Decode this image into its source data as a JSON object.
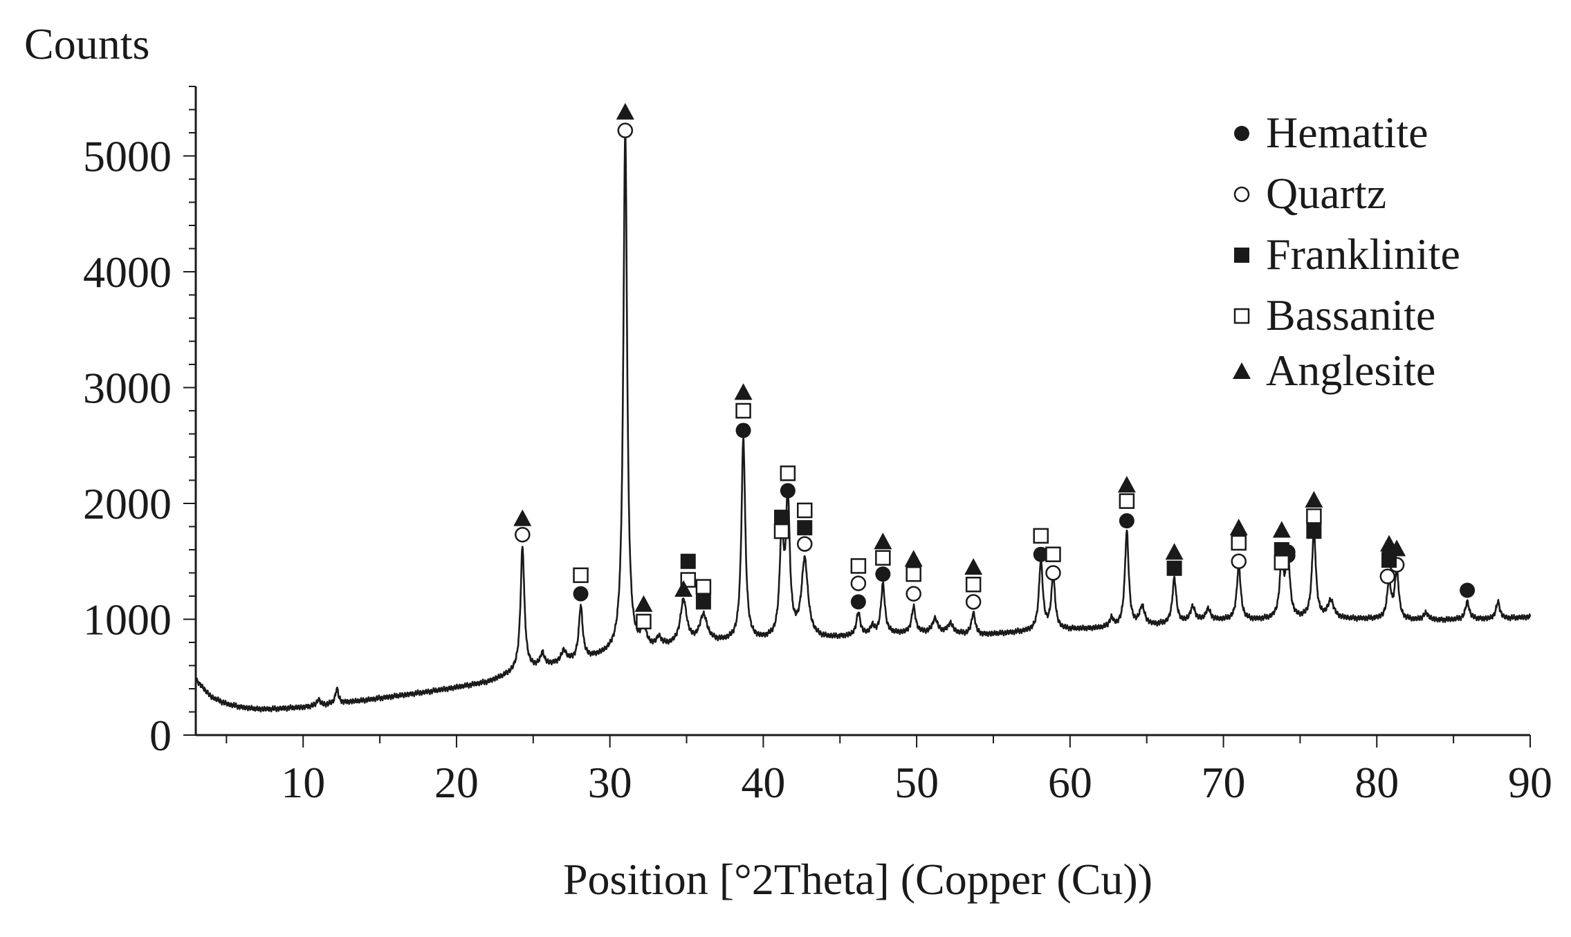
{
  "chart_data": {
    "type": "line",
    "title": "",
    "xlabel": "Position [°2Theta] (Copper (Cu))",
    "ylabel": "Counts",
    "xlim": [
      3,
      90
    ],
    "ylim": [
      0,
      5600
    ],
    "x_ticks": [
      10,
      20,
      30,
      40,
      50,
      60,
      70,
      80,
      90
    ],
    "y_ticks": [
      0,
      1000,
      2000,
      3000,
      4000,
      5000
    ],
    "grid": false,
    "legend_position": "top-right",
    "line_color": "#1a1a1a",
    "baseline": [
      [
        3,
        480
      ],
      [
        4,
        330
      ],
      [
        5,
        270
      ],
      [
        6,
        240
      ],
      [
        7,
        225
      ],
      [
        8,
        225
      ],
      [
        10,
        240
      ],
      [
        12,
        270
      ],
      [
        14,
        300
      ],
      [
        16,
        335
      ],
      [
        18,
        370
      ],
      [
        20,
        410
      ],
      [
        22,
        455
      ],
      [
        23,
        500
      ],
      [
        24,
        550
      ],
      [
        26,
        600
      ],
      [
        28,
        640
      ],
      [
        30,
        690
      ],
      [
        32,
        720
      ],
      [
        34,
        760
      ],
      [
        36,
        790
      ],
      [
        38,
        800
      ],
      [
        40,
        810
      ],
      [
        42,
        830
      ],
      [
        44,
        830
      ],
      [
        46,
        850
      ],
      [
        48,
        870
      ],
      [
        50,
        880
      ],
      [
        52,
        880
      ],
      [
        54,
        860
      ],
      [
        56,
        880
      ],
      [
        58,
        900
      ],
      [
        60,
        910
      ],
      [
        62,
        920
      ],
      [
        64,
        930
      ],
      [
        66,
        950
      ],
      [
        68,
        970
      ],
      [
        70,
        990
      ],
      [
        72,
        990
      ],
      [
        74,
        1000
      ],
      [
        76,
        1000
      ],
      [
        78,
        1000
      ],
      [
        80,
        1000
      ],
      [
        82,
        990
      ],
      [
        84,
        990
      ],
      [
        86,
        1000
      ],
      [
        88,
        1000
      ],
      [
        90,
        1020
      ]
    ],
    "peaks": [
      {
        "x": 11,
        "y": 310,
        "w": 0.12
      },
      {
        "x": 12.2,
        "y": 400,
        "w": 0.12
      },
      {
        "x": 24.3,
        "y": 1620,
        "w": 0.15
      },
      {
        "x": 25.6,
        "y": 700,
        "w": 0.15
      },
      {
        "x": 27,
        "y": 720,
        "w": 0.2
      },
      {
        "x": 28.1,
        "y": 1100,
        "w": 0.15
      },
      {
        "x": 31,
        "y": 5200,
        "w": 0.15
      },
      {
        "x": 32.2,
        "y": 900,
        "w": 0.2
      },
      {
        "x": 33.2,
        "y": 820,
        "w": 0.2
      },
      {
        "x": 34.8,
        "y": 1150,
        "w": 0.25
      },
      {
        "x": 36.1,
        "y": 1020,
        "w": 0.3
      },
      {
        "x": 38.7,
        "y": 2550,
        "w": 0.15
      },
      {
        "x": 41.2,
        "y": 1700,
        "w": 0.15
      },
      {
        "x": 41.6,
        "y": 2000,
        "w": 0.15
      },
      {
        "x": 42.7,
        "y": 1500,
        "w": 0.25
      },
      {
        "x": 46.2,
        "y": 1050,
        "w": 0.15
      },
      {
        "x": 47.1,
        "y": 930,
        "w": 0.15
      },
      {
        "x": 47.8,
        "y": 1300,
        "w": 0.15
      },
      {
        "x": 49.8,
        "y": 1100,
        "w": 0.15
      },
      {
        "x": 51.2,
        "y": 1000,
        "w": 0.2
      },
      {
        "x": 52.2,
        "y": 960,
        "w": 0.2
      },
      {
        "x": 53.7,
        "y": 1050,
        "w": 0.15
      },
      {
        "x": 58.1,
        "y": 1500,
        "w": 0.15
      },
      {
        "x": 58.9,
        "y": 1360,
        "w": 0.15
      },
      {
        "x": 62.7,
        "y": 1000,
        "w": 0.15
      },
      {
        "x": 63.7,
        "y": 1750,
        "w": 0.15
      },
      {
        "x": 64.7,
        "y": 1100,
        "w": 0.2
      },
      {
        "x": 66.8,
        "y": 1350,
        "w": 0.15
      },
      {
        "x": 68,
        "y": 1100,
        "w": 0.2
      },
      {
        "x": 69,
        "y": 1080,
        "w": 0.2
      },
      {
        "x": 71,
        "y": 1460,
        "w": 0.15
      },
      {
        "x": 73.8,
        "y": 1500,
        "w": 0.15
      },
      {
        "x": 74.2,
        "y": 1560,
        "w": 0.15
      },
      {
        "x": 75.9,
        "y": 1760,
        "w": 0.15
      },
      {
        "x": 77,
        "y": 1150,
        "w": 0.25
      },
      {
        "x": 80.8,
        "y": 1320,
        "w": 0.15
      },
      {
        "x": 81.3,
        "y": 1420,
        "w": 0.15
      },
      {
        "x": 83.2,
        "y": 1050,
        "w": 0.2
      },
      {
        "x": 85.9,
        "y": 1150,
        "w": 0.15
      },
      {
        "x": 87.9,
        "y": 1150,
        "w": 0.15
      }
    ],
    "series": [
      {
        "name": "Hematite",
        "marker": "filled-circle",
        "points": [
          [
            28.1,
            1220
          ],
          [
            38.7,
            2630
          ],
          [
            41.6,
            2110
          ],
          [
            46.2,
            1150
          ],
          [
            47.8,
            1390
          ],
          [
            58.1,
            1560
          ],
          [
            63.7,
            1850
          ],
          [
            74.2,
            1580
          ],
          [
            74.2,
            1550
          ],
          [
            80.8,
            1560
          ],
          [
            85.9,
            1250
          ]
        ]
      },
      {
        "name": "Quartz",
        "marker": "open-circle",
        "points": [
          [
            24.3,
            1730
          ],
          [
            31,
            5220
          ],
          [
            42.7,
            1650
          ],
          [
            46.2,
            1310
          ],
          [
            49.8,
            1220
          ],
          [
            53.7,
            1150
          ],
          [
            58.9,
            1400
          ],
          [
            71,
            1500
          ],
          [
            80.7,
            1370
          ],
          [
            81.3,
            1470
          ]
        ]
      },
      {
        "name": "Franklinite",
        "marker": "filled-square",
        "points": [
          [
            35.1,
            1500
          ],
          [
            36.1,
            1150
          ],
          [
            41.2,
            1880
          ],
          [
            42.7,
            1790
          ],
          [
            66.8,
            1440
          ],
          [
            73.8,
            1600
          ],
          [
            75.9,
            1760
          ],
          [
            80.8,
            1510
          ]
        ]
      },
      {
        "name": "Bassanite",
        "marker": "open-square",
        "points": [
          [
            28.1,
            1380
          ],
          [
            32.2,
            980
          ],
          [
            35.1,
            1340
          ],
          [
            36.1,
            1280
          ],
          [
            38.7,
            2800
          ],
          [
            41.2,
            1760
          ],
          [
            41.6,
            2260
          ],
          [
            42.7,
            1940
          ],
          [
            46.2,
            1460
          ],
          [
            47.8,
            1530
          ],
          [
            49.8,
            1390
          ],
          [
            53.7,
            1300
          ],
          [
            58.1,
            1720
          ],
          [
            58.9,
            1560
          ],
          [
            63.7,
            2020
          ],
          [
            71,
            1660
          ],
          [
            73.8,
            1490
          ],
          [
            75.9,
            1890
          ]
        ]
      },
      {
        "name": "Anglesite",
        "marker": "filled-triangle",
        "points": [
          [
            24.3,
            1870
          ],
          [
            31,
            5380
          ],
          [
            32.2,
            1130
          ],
          [
            34.8,
            1260
          ],
          [
            38.7,
            2960
          ],
          [
            47.8,
            1670
          ],
          [
            49.8,
            1520
          ],
          [
            53.7,
            1450
          ],
          [
            63.7,
            2160
          ],
          [
            66.8,
            1580
          ],
          [
            71,
            1790
          ],
          [
            73.8,
            1770
          ],
          [
            75.9,
            2030
          ],
          [
            80.8,
            1650
          ],
          [
            81.3,
            1610
          ]
        ]
      }
    ]
  }
}
